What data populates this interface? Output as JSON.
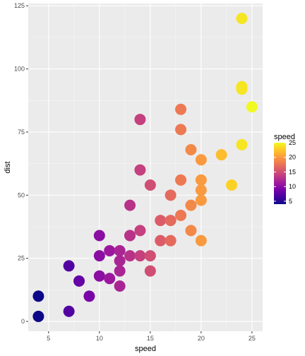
{
  "chart_data": {
    "type": "scatter",
    "xlabel": "speed",
    "ylabel": "dist",
    "xlim": [
      3.0,
      26.05
    ],
    "ylim": [
      -3.9,
      125.9
    ],
    "xticks": [
      5,
      10,
      15,
      20,
      25
    ],
    "yticks": [
      0,
      25,
      50,
      75,
      100,
      125
    ],
    "grid": true,
    "legend": {
      "title": "speed",
      "placement": "right",
      "ticks": [
        5,
        10,
        15,
        20,
        25
      ],
      "range": [
        4,
        25
      ],
      "colors": [
        "#0d0887",
        "#46039f",
        "#7201a8",
        "#9c179e",
        "#bd3786",
        "#d8576b",
        "#ed7953",
        "#fb9f3a",
        "#fdca26",
        "#f0f921"
      ]
    },
    "points": [
      {
        "x": 4,
        "y": 2
      },
      {
        "x": 4,
        "y": 10
      },
      {
        "x": 7,
        "y": 4
      },
      {
        "x": 7,
        "y": 22
      },
      {
        "x": 8,
        "y": 16
      },
      {
        "x": 9,
        "y": 10
      },
      {
        "x": 10,
        "y": 18
      },
      {
        "x": 10,
        "y": 26
      },
      {
        "x": 10,
        "y": 34
      },
      {
        "x": 11,
        "y": 17
      },
      {
        "x": 11,
        "y": 28
      },
      {
        "x": 12,
        "y": 14
      },
      {
        "x": 12,
        "y": 20
      },
      {
        "x": 12,
        "y": 24
      },
      {
        "x": 12,
        "y": 28
      },
      {
        "x": 13,
        "y": 26
      },
      {
        "x": 13,
        "y": 34
      },
      {
        "x": 13,
        "y": 34
      },
      {
        "x": 13,
        "y": 46
      },
      {
        "x": 14,
        "y": 26
      },
      {
        "x": 14,
        "y": 36
      },
      {
        "x": 14,
        "y": 60
      },
      {
        "x": 14,
        "y": 80
      },
      {
        "x": 15,
        "y": 20
      },
      {
        "x": 15,
        "y": 26
      },
      {
        "x": 15,
        "y": 54
      },
      {
        "x": 16,
        "y": 32
      },
      {
        "x": 16,
        "y": 40
      },
      {
        "x": 17,
        "y": 32
      },
      {
        "x": 17,
        "y": 40
      },
      {
        "x": 17,
        "y": 50
      },
      {
        "x": 18,
        "y": 42
      },
      {
        "x": 18,
        "y": 56
      },
      {
        "x": 18,
        "y": 76
      },
      {
        "x": 18,
        "y": 84
      },
      {
        "x": 19,
        "y": 36
      },
      {
        "x": 19,
        "y": 46
      },
      {
        "x": 19,
        "y": 68
      },
      {
        "x": 20,
        "y": 32
      },
      {
        "x": 20,
        "y": 48
      },
      {
        "x": 20,
        "y": 52
      },
      {
        "x": 20,
        "y": 56
      },
      {
        "x": 20,
        "y": 64
      },
      {
        "x": 22,
        "y": 66
      },
      {
        "x": 23,
        "y": 54
      },
      {
        "x": 24,
        "y": 70
      },
      {
        "x": 24,
        "y": 92
      },
      {
        "x": 24,
        "y": 93
      },
      {
        "x": 24,
        "y": 120
      },
      {
        "x": 25,
        "y": 85
      }
    ]
  }
}
